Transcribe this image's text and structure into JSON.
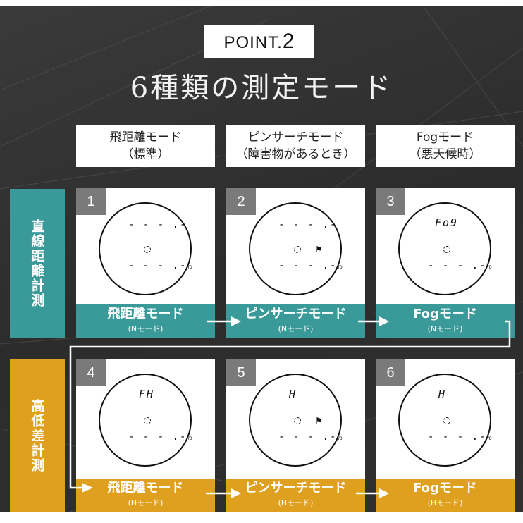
{
  "point_badge": {
    "prefix": "POINT.",
    "number": "2"
  },
  "title": "6種類の測定モード",
  "columns": [
    {
      "line1": "飛距離モード",
      "line2": "（標準）"
    },
    {
      "line1": "ピンサーチモード",
      "line2": "（障害物があるとき）"
    },
    {
      "line1": "Fogモード",
      "line2": "（悪天候時）"
    }
  ],
  "rows": [
    {
      "label": "直線距離計測",
      "color": "#3a9a9a"
    },
    {
      "label": "高低差計測",
      "color": "#dea01e"
    }
  ],
  "panels": [
    {
      "num": "1",
      "top": "- - - .-",
      "bottom": "- - - .-",
      "unit": "YD",
      "flag": false,
      "mode": "飛距離モード",
      "sub": "(Nモード)"
    },
    {
      "num": "2",
      "top": "- - - .-",
      "bottom": "- - - .-",
      "unit": "YD",
      "flag": true,
      "mode": "ピンサーチモード",
      "sub": "(Nモード)"
    },
    {
      "num": "3",
      "top": "Fo9",
      "bottom": "- - - .-",
      "unit": "YD",
      "flag": false,
      "mode": "Fogモード",
      "sub": "(Nモード)"
    },
    {
      "num": "4",
      "top": "FH",
      "bottom": "- - - .-",
      "unit": "YD",
      "flag": false,
      "mode": "飛距離モード",
      "sub": "(Hモード)"
    },
    {
      "num": "5",
      "top": "H",
      "bottom": "- - - .-",
      "unit": "YD",
      "flag": true,
      "mode": "ピンサーチモード",
      "sub": "(Hモード)"
    },
    {
      "num": "6",
      "top": "H",
      "bottom": "- - - .-",
      "unit": "YD",
      "flag": false,
      "mode": "Fogモード",
      "sub": "(Hモード)"
    }
  ],
  "flag_icon": "golf-flag-icon"
}
